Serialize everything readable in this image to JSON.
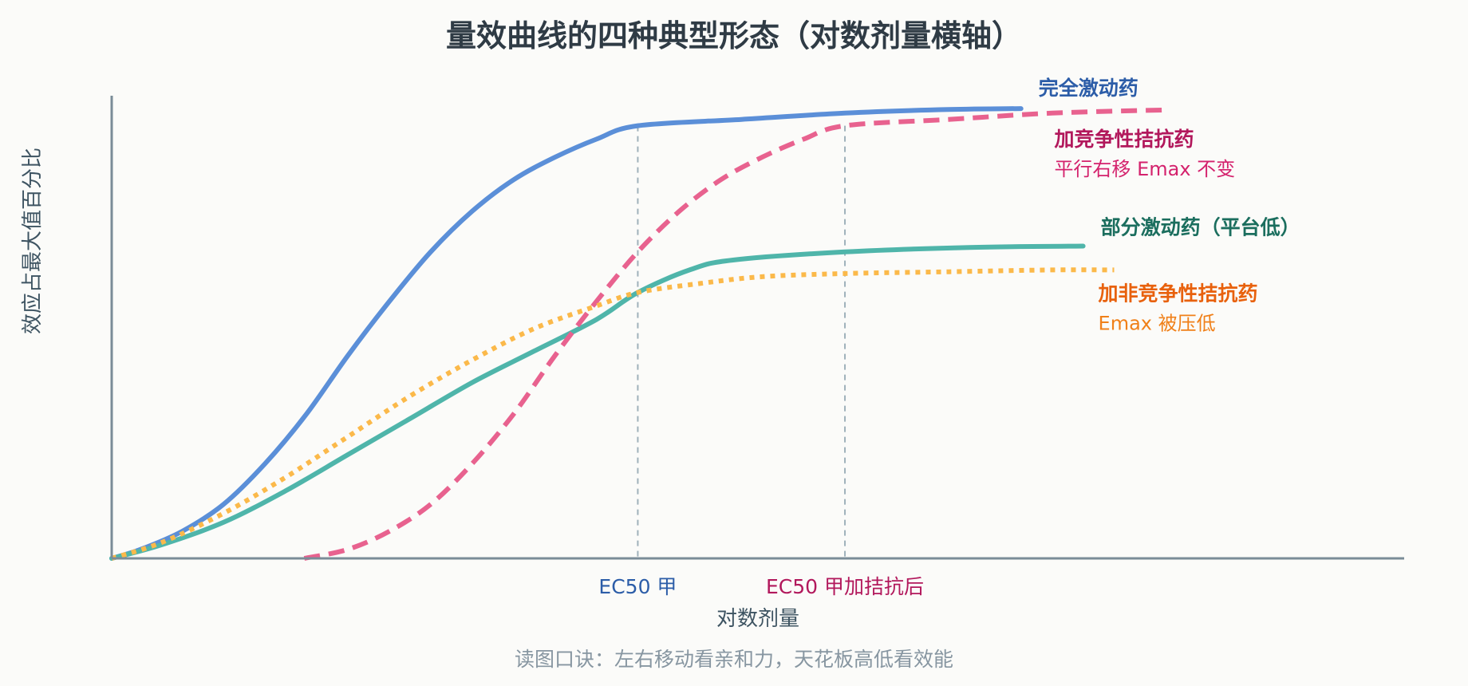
{
  "chart_data": {
    "type": "line",
    "title": "量效曲线的四种典型形态（对数剂量横轴）",
    "xlabel": "对数剂量",
    "ylabel": "效应占最大值百分比",
    "caption": "读图口诀：左右移动看亲和力，天花板高低看效能",
    "x_scale": "log",
    "grid": false,
    "reference_lines": [
      {
        "label": "EC50 甲",
        "x": 0,
        "color": "#2c5da8"
      },
      {
        "label": "EC50 甲加拮抗后",
        "x": 1,
        "color": "#b2185c"
      }
    ],
    "series": [
      {
        "name": "完全激动药",
        "color": "#5b8fd8",
        "style": "solid",
        "label_color": "#2c5da8",
        "x": [
          -2.54,
          -2.4,
          -2.2,
          -2.0,
          -1.8,
          -1.6,
          -1.4,
          -1.2,
          -1.0,
          -0.8,
          -0.6,
          -0.4,
          -0.2,
          0.0,
          0.5,
          1.0,
          1.5,
          1.85
        ],
        "y": [
          0,
          2,
          6,
          12,
          21,
          32,
          45,
          57,
          68,
          77,
          84,
          89,
          93,
          96,
          97.4,
          98.8,
          99.6,
          99.8
        ]
      },
      {
        "name": "部分激动药（平台低）",
        "color": "#4fb5aa",
        "style": "solid",
        "label_color": "#1b6e5e",
        "x": [
          -2.54,
          -2.3,
          -2.0,
          -1.7,
          -1.4,
          -1.1,
          -0.8,
          -0.5,
          -0.2,
          0.0,
          0.25,
          0.46,
          1.0,
          1.6,
          2.15
        ],
        "y": [
          0,
          3,
          8,
          15,
          23,
          31,
          39,
          46,
          53,
          59,
          64,
          66.2,
          68,
          69,
          69.3
        ]
      },
      {
        "name": "加竞争性拮抗药",
        "sublabel": "平行右移 Emax 不变",
        "color": "#e8628f",
        "style": "dashed",
        "label_color": "#b2185c",
        "x": [
          -1.61,
          -1.4,
          -1.2,
          -1.0,
          -0.8,
          -0.6,
          -0.4,
          -0.2,
          0.0,
          0.2,
          0.4,
          0.6,
          0.8,
          1.0,
          1.5,
          2.0,
          2.55
        ],
        "y": [
          0,
          2,
          6,
          12,
          21,
          32,
          45,
          57,
          68,
          77,
          84,
          89,
          93,
          96,
          97.4,
          98.8,
          99.5
        ]
      },
      {
        "name": "加非竞争性拮抗药",
        "sublabel": "Emax 被压低",
        "color": "#fbb94a",
        "style": "dotted",
        "label_color": "#e8610d",
        "x": [
          -2.54,
          -2.3,
          -2.0,
          -1.7,
          -1.4,
          -1.1,
          -0.8,
          -0.5,
          -0.2,
          0.0,
          0.3,
          0.6,
          1.0,
          1.5,
          2.0,
          2.3
        ],
        "y": [
          0,
          3.5,
          10,
          18,
          27,
          36,
          44,
          51,
          56,
          59,
          61,
          62.5,
          63.2,
          63.6,
          64,
          64
        ]
      }
    ],
    "ylim": [
      0,
      100
    ],
    "xlim": [
      -2.54,
      3.7
    ]
  }
}
